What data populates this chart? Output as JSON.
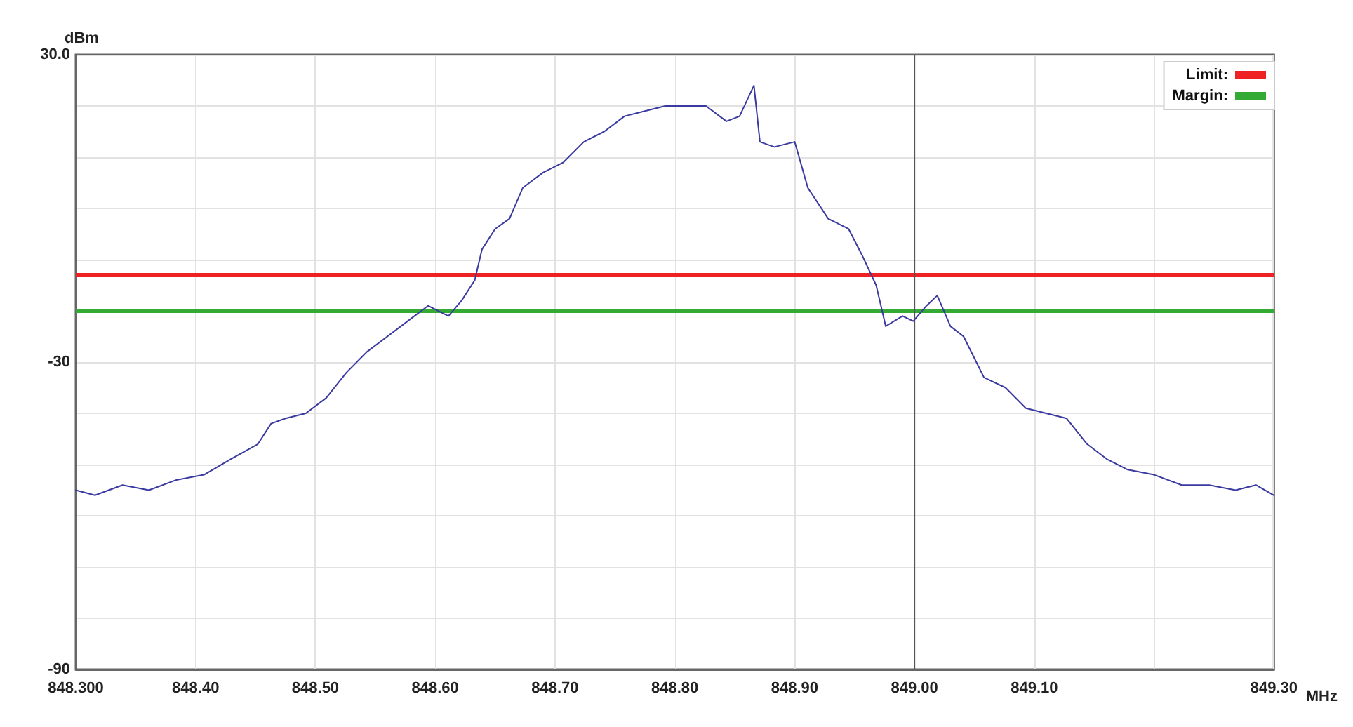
{
  "chart_data": {
    "type": "line",
    "xlabel": "MHz",
    "ylabel": "dBm",
    "x": [
      848.3,
      848.316,
      848.339,
      848.361,
      848.384,
      848.407,
      848.429,
      848.452,
      848.463,
      848.475,
      848.492,
      848.509,
      848.526,
      848.543,
      848.56,
      848.577,
      848.594,
      848.611,
      848.622,
      848.633,
      848.639,
      848.65,
      848.662,
      848.673,
      848.69,
      848.707,
      848.724,
      848.741,
      848.758,
      848.775,
      848.792,
      848.809,
      848.826,
      848.843,
      848.854,
      848.866,
      848.871,
      848.883,
      848.9,
      848.911,
      848.928,
      848.945,
      848.956,
      848.968,
      848.976,
      848.99,
      848.999,
      849.01,
      849.019,
      849.03,
      849.041,
      849.058,
      849.076,
      849.093,
      849.11,
      849.127,
      849.144,
      849.161,
      849.178,
      849.2,
      849.223,
      849.246,
      849.268,
      849.285,
      849.3
    ],
    "series": [
      {
        "color": "#3a3aa0",
        "values": [
          -55,
          -56,
          -54,
          -55,
          -53,
          -52,
          -49,
          -46,
          -42,
          -41,
          -40,
          -37,
          -32,
          -28,
          -25,
          -22,
          -19,
          -21,
          -18,
          -14,
          -8,
          -4,
          -2,
          4,
          7,
          9,
          13,
          15,
          18,
          19,
          20,
          20,
          20,
          17,
          18,
          24,
          13,
          12,
          13,
          4,
          -2,
          -4,
          -9,
          -15,
          -23,
          -21,
          -22,
          -19,
          -17,
          -23,
          -25,
          -33,
          -35,
          -39,
          -40,
          -41,
          -46,
          -49,
          -51,
          -52,
          -54,
          -54,
          -55,
          -54,
          -56
        ]
      }
    ],
    "xlim": [
      848.3,
      849.3
    ],
    "ylim": [
      -90,
      30
    ],
    "xticks": [
      {
        "value": 848.3,
        "label": "848.300"
      },
      {
        "value": 848.4,
        "label": "848.40"
      },
      {
        "value": 848.5,
        "label": "848.50"
      },
      {
        "value": 848.6,
        "label": "848.60"
      },
      {
        "value": 848.7,
        "label": "848.70"
      },
      {
        "value": 848.8,
        "label": "848.80"
      },
      {
        "value": 848.9,
        "label": "848.90"
      },
      {
        "value": 849.0,
        "label": "849.00"
      },
      {
        "value": 849.1,
        "label": "849.10"
      },
      {
        "value": 849.2,
        "label": null
      },
      {
        "value": 849.3,
        "label": "849.30"
      }
    ],
    "yticks": [
      -90,
      {
        "value": -80,
        "label": null
      },
      {
        "value": -70,
        "label": null
      },
      {
        "value": -60,
        "label": null
      },
      {
        "value": -50,
        "label": null
      },
      {
        "value": -40,
        "label": null
      },
      -30,
      {
        "value": -20,
        "label": null
      },
      {
        "value": -10,
        "label": null
      },
      {
        "value": 0,
        "label": null
      },
      {
        "value": 10,
        "label": null
      },
      {
        "value": 20,
        "label": null
      },
      {
        "value": 30,
        "label": "30.0"
      }
    ],
    "ref_lines": [
      {
        "axis": "y",
        "value": -13,
        "label": "Limit:",
        "color": "#ee2222"
      },
      {
        "axis": "y",
        "value": -20,
        "label": "Margin:",
        "color": "#33aa33"
      },
      {
        "axis": "x",
        "value": 849.0,
        "color": "#555555"
      }
    ],
    "grid": true,
    "legend": "top right",
    "marker": "none",
    "line_style": "solid"
  }
}
